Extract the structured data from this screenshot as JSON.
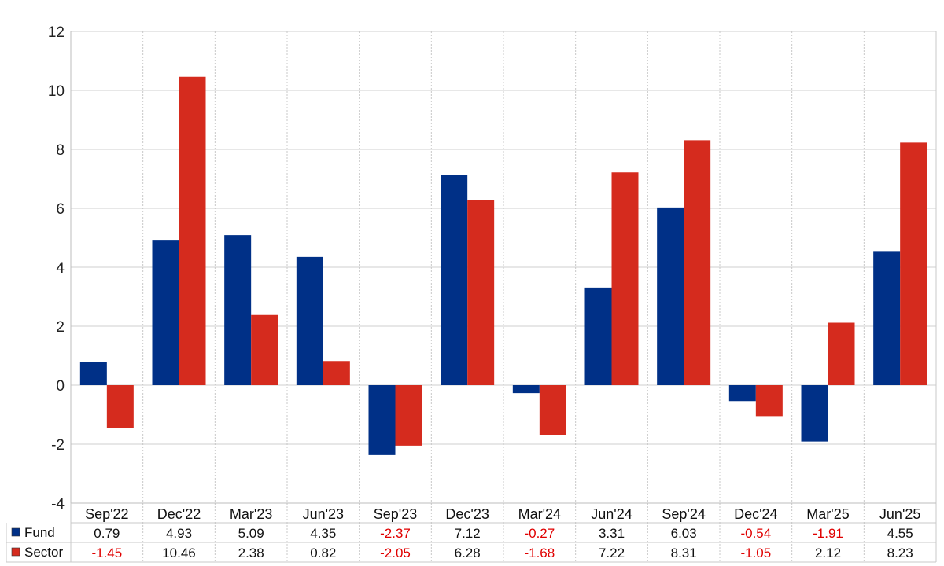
{
  "chart_data": {
    "type": "bar",
    "categories": [
      "Sep'22",
      "Dec'22",
      "Mar'23",
      "Jun'23",
      "Sep'23",
      "Dec'23",
      "Mar'24",
      "Jun'24",
      "Sep'24",
      "Dec'24",
      "Mar'25",
      "Jun'25"
    ],
    "series": [
      {
        "name": "Fund",
        "color": "#003087",
        "values": [
          0.79,
          4.93,
          5.09,
          4.35,
          -2.37,
          7.12,
          -0.27,
          3.31,
          6.03,
          -0.54,
          -1.91,
          4.55
        ],
        "labels": [
          "0.79",
          "4.93",
          "5.09",
          "4.35",
          "-2.37",
          "7.12",
          "-0.27",
          "3.31",
          "6.03",
          "-0.54",
          "-1.91",
          "4.55"
        ]
      },
      {
        "name": "Sector",
        "color": "#d52b1e",
        "values": [
          -1.45,
          10.46,
          2.38,
          0.82,
          -2.05,
          6.28,
          -1.68,
          7.22,
          8.31,
          -1.05,
          2.12,
          8.23
        ],
        "labels": [
          "-1.45",
          "10.46",
          "2.38",
          "0.82",
          "-2.05",
          "6.28",
          "-1.68",
          "7.22",
          "8.31",
          "-1.05",
          "2.12",
          "8.23"
        ]
      }
    ],
    "ylim": [
      -4,
      12
    ],
    "yticks": [
      "12",
      "10",
      "8",
      "6",
      "4",
      "2",
      "0",
      "-2",
      "-4"
    ],
    "ytick_values": [
      12,
      10,
      8,
      6,
      4,
      2,
      0,
      -2,
      -4
    ],
    "grid": true,
    "legend": "data table below chart",
    "negative_value_color": "#e00000",
    "positive_value_color": "#111111"
  }
}
